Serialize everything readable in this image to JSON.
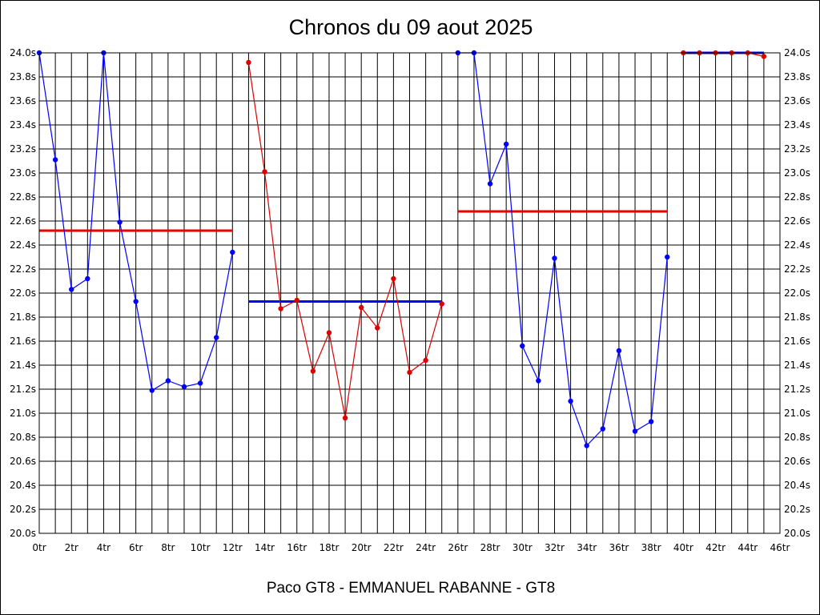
{
  "chart_data": {
    "type": "line",
    "title": "Chronos du 09 aout 2025",
    "xlabel": "Paco GT8 - EMMANUEL RABANNE - GT8",
    "ylabel": "",
    "xlim": [
      0,
      46
    ],
    "ylim": [
      20.0,
      24.0
    ],
    "x_tick_step": 2,
    "y_tick_step": 0.2,
    "x_tick_suffix": "tr",
    "y_tick_suffix": "s",
    "grid": true,
    "series": [
      {
        "color": "#0000ff",
        "points": [
          [
            0,
            24.0
          ],
          [
            1,
            23.11
          ],
          [
            2,
            22.03
          ],
          [
            3,
            22.12
          ],
          [
            4,
            24.0
          ],
          [
            5,
            22.59
          ],
          [
            6,
            21.93
          ],
          [
            7,
            21.19
          ],
          [
            8,
            21.27
          ],
          [
            9,
            21.22
          ],
          [
            10,
            21.25
          ],
          [
            11,
            21.63
          ],
          [
            12,
            22.34
          ]
        ]
      },
      {
        "color": "#dd0000",
        "points": [
          [
            13,
            23.92
          ],
          [
            14,
            23.01
          ],
          [
            15,
            21.87
          ],
          [
            16,
            21.94
          ],
          [
            17,
            21.35
          ],
          [
            18,
            21.67
          ],
          [
            19,
            20.96
          ],
          [
            20,
            21.88
          ],
          [
            21,
            21.71
          ],
          [
            22,
            22.12
          ],
          [
            23,
            21.34
          ],
          [
            24,
            21.44
          ],
          [
            25,
            21.91
          ]
        ]
      },
      {
        "color": "#0000ff",
        "points": [
          [
            26,
            24.0
          ],
          [
            27,
            24.0
          ],
          [
            28,
            22.91
          ],
          [
            29,
            23.24
          ],
          [
            30,
            21.56
          ],
          [
            31,
            21.27
          ],
          [
            32,
            22.29
          ],
          [
            33,
            21.1
          ],
          [
            34,
            20.73
          ],
          [
            35,
            20.87
          ],
          [
            36,
            21.52
          ],
          [
            37,
            20.85
          ],
          [
            38,
            20.93
          ],
          [
            39,
            22.3
          ]
        ]
      },
      {
        "color": "#dd0000",
        "points": [
          [
            40,
            24.0
          ],
          [
            41,
            24.0
          ],
          [
            42,
            24.0
          ],
          [
            43,
            24.0
          ],
          [
            44,
            24.0
          ],
          [
            45,
            23.97
          ]
        ]
      }
    ],
    "averages": [
      {
        "color": "#ee0000",
        "x_start": 0,
        "x_end": 12,
        "y": 22.52
      },
      {
        "color": "#0000ff",
        "x_start": 13,
        "x_end": 25,
        "y": 21.93
      },
      {
        "color": "#ee0000",
        "x_start": 26,
        "x_end": 39,
        "y": 22.68
      },
      {
        "color": "#0000ff",
        "x_start": 40,
        "x_end": 45,
        "y": 24.0
      }
    ]
  }
}
